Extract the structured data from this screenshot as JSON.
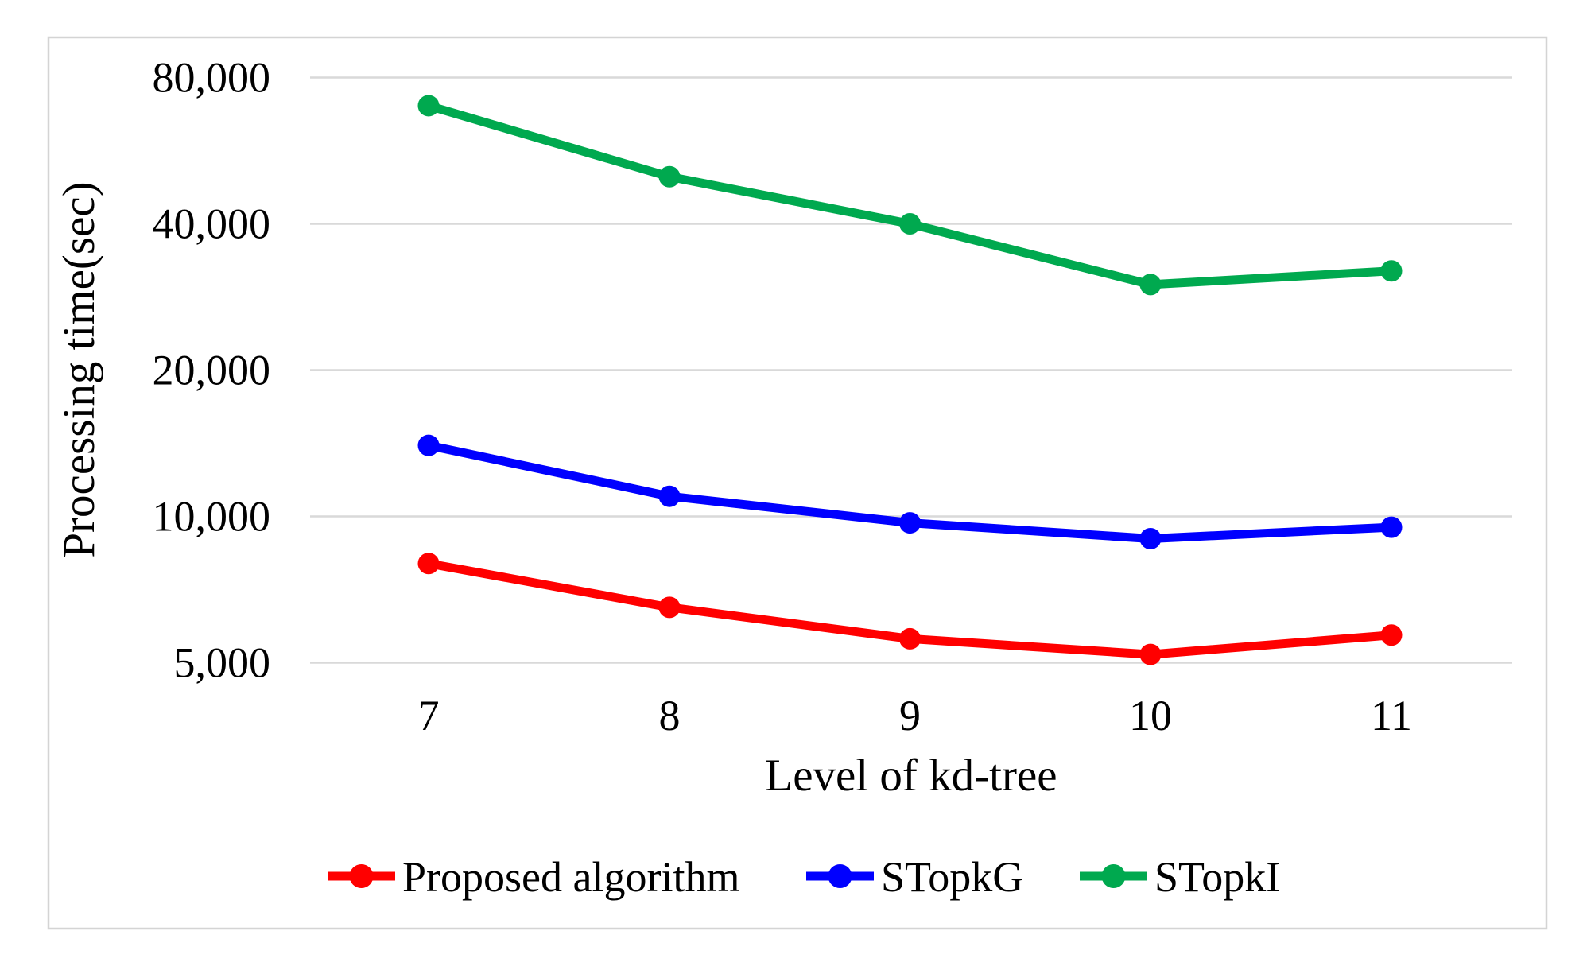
{
  "chart_data": {
    "type": "line",
    "title": "",
    "xlabel": "Level of kd-tree",
    "ylabel": "Processing time(sec)",
    "x": [
      7,
      8,
      9,
      10,
      11
    ],
    "x_tick_labels": [
      "7",
      "8",
      "9",
      "10",
      "11"
    ],
    "y_scale": "log2",
    "y_ticks": [
      5000,
      10000,
      20000,
      40000,
      80000
    ],
    "y_tick_labels": [
      "5,000",
      "10,000",
      "20,000",
      "40,000",
      "80,000"
    ],
    "ylim": [
      5000,
      80000
    ],
    "grid": true,
    "legend_position": "bottom",
    "series": [
      {
        "name": "Proposed algorithm",
        "color": "#FF0000",
        "values": [
          8000,
          6500,
          5600,
          5200,
          5700
        ]
      },
      {
        "name": "STopkG",
        "color": "#0000FF",
        "values": [
          14000,
          11000,
          9700,
          9000,
          9500
        ]
      },
      {
        "name": "STopkI",
        "color": "#00A94F",
        "values": [
          70000,
          50000,
          40000,
          30000,
          32000
        ]
      }
    ]
  },
  "colors": {
    "gridline": "#D9D9D9",
    "frame": "#D4D4D4",
    "text": "#000000",
    "background": "#FFFFFF"
  }
}
